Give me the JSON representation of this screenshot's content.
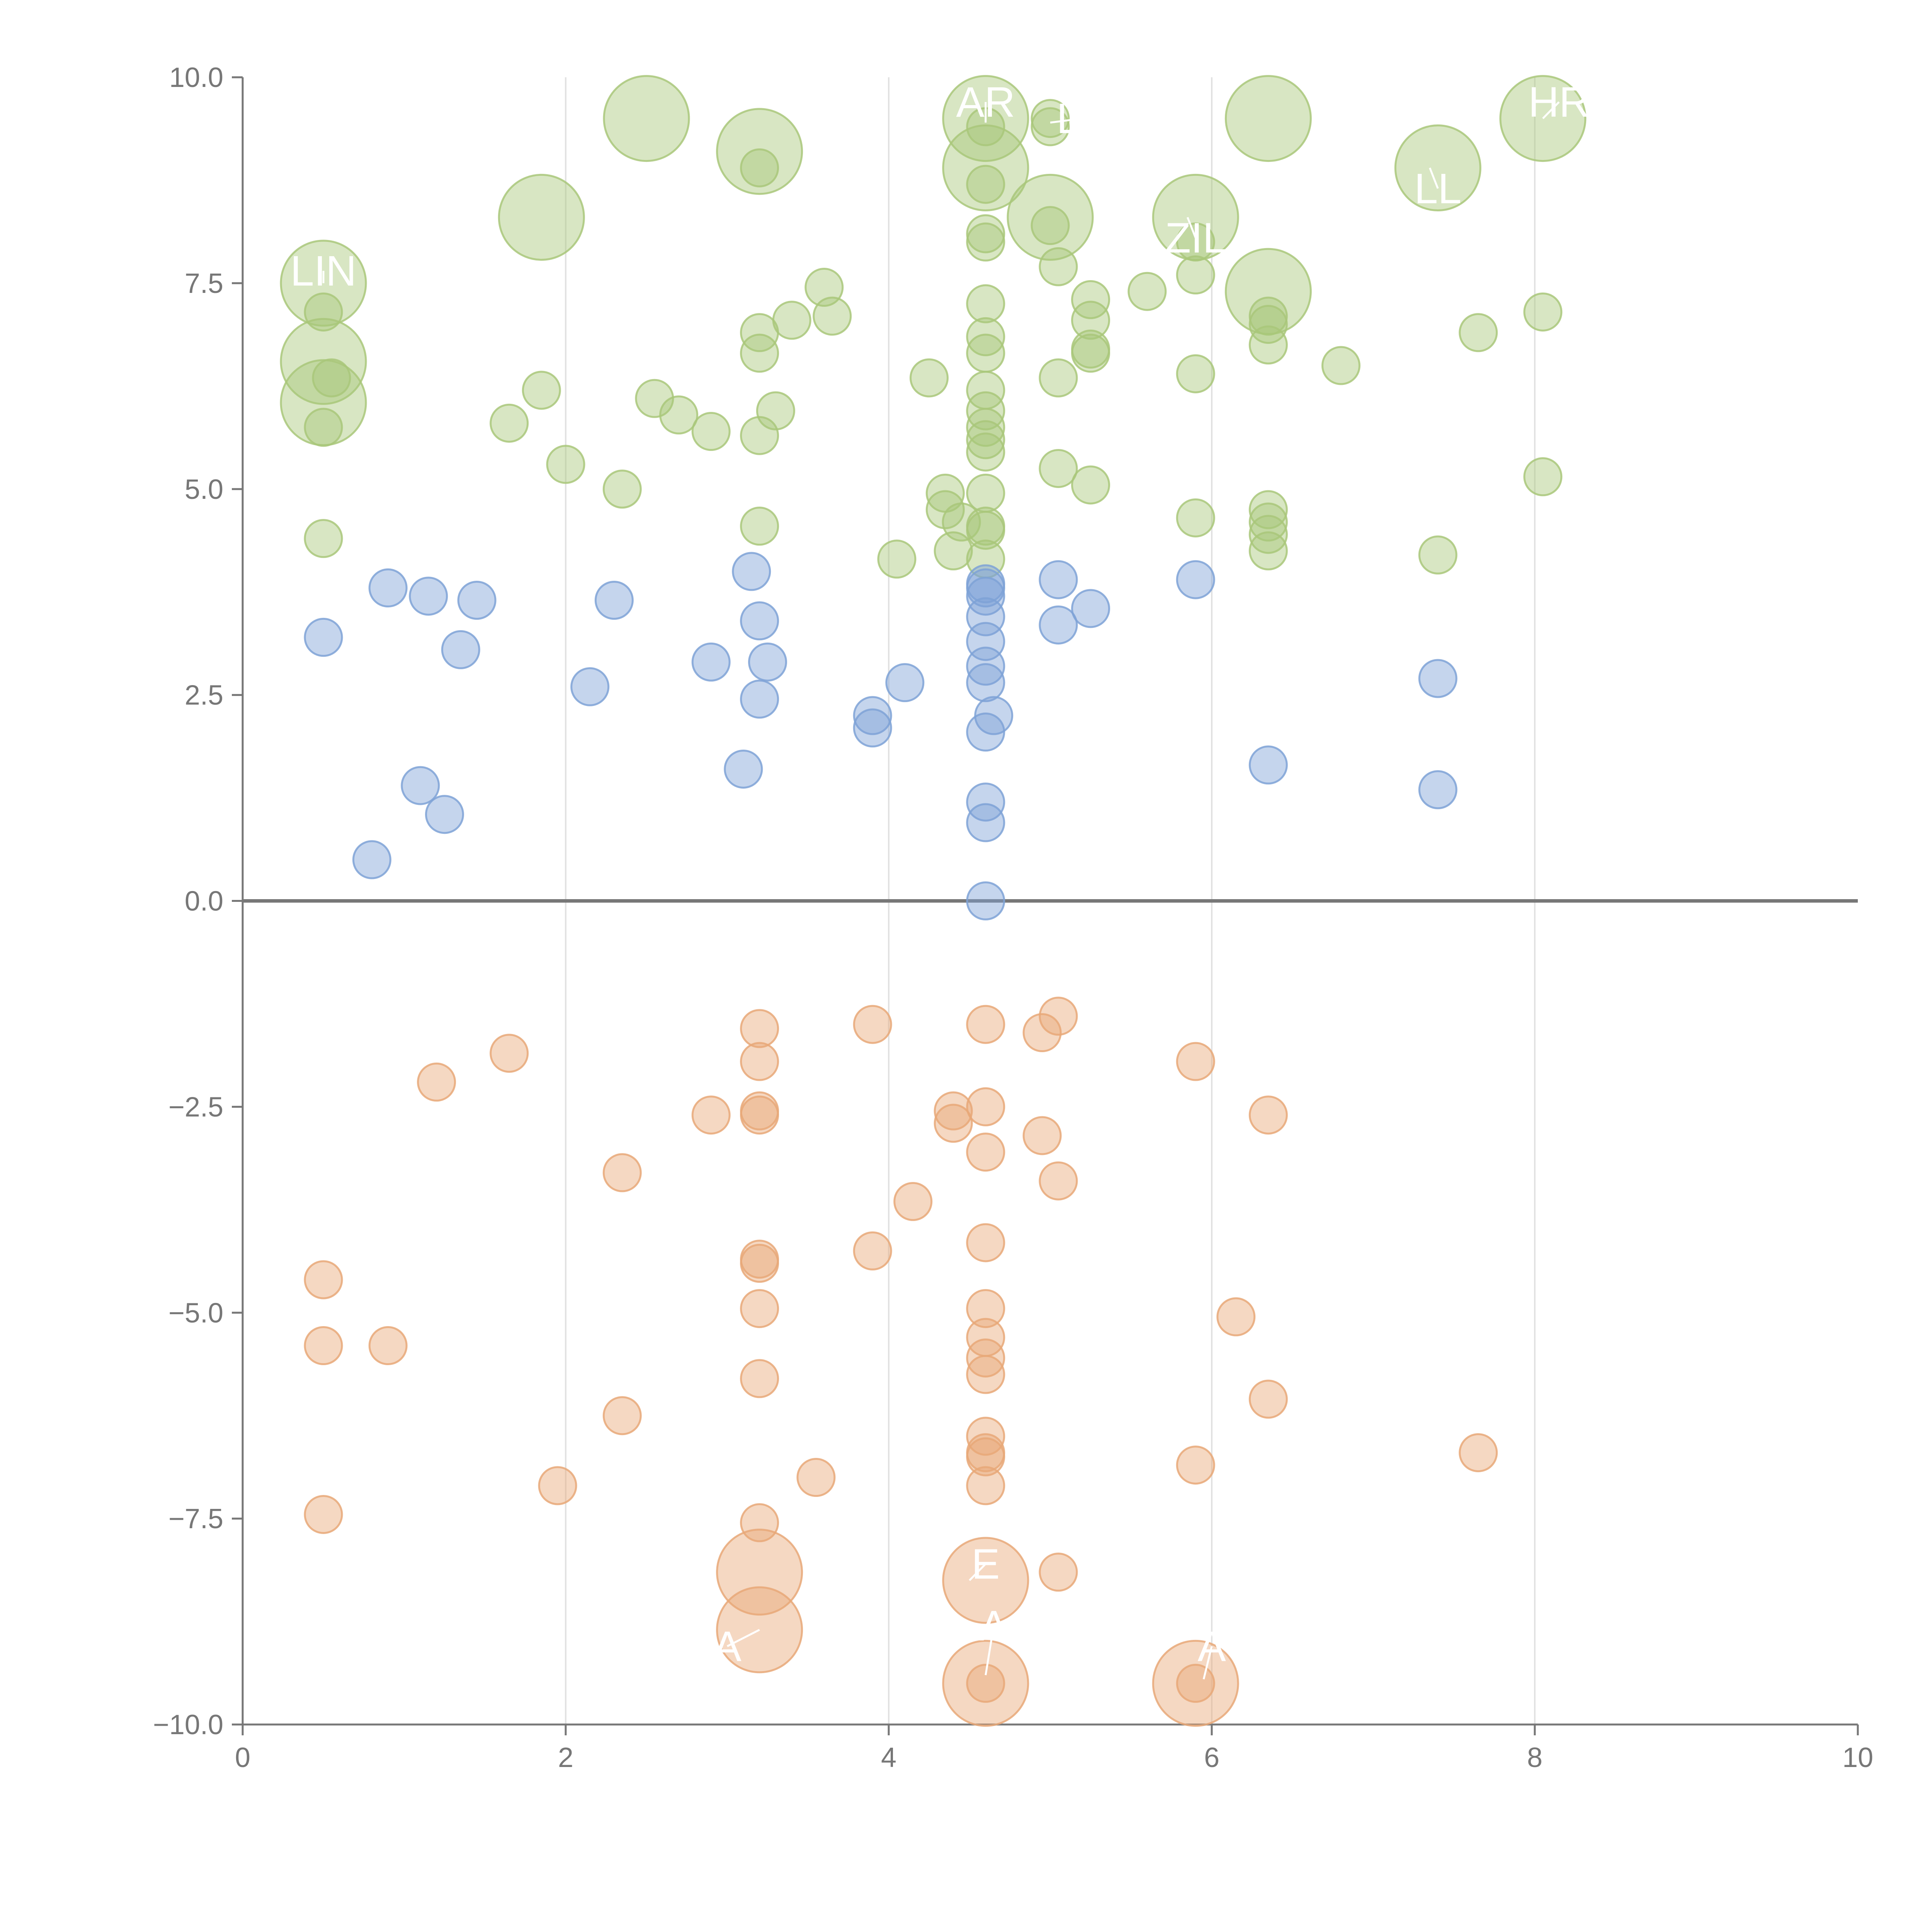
{
  "chart_data": {
    "type": "scatter",
    "title": "",
    "xlabel": "",
    "ylabel": "",
    "xlim": [
      0,
      10
    ],
    "ylim": [
      -10,
      10
    ],
    "x_ticks": [
      0,
      2,
      4,
      6,
      8,
      10
    ],
    "x_tick_labels": [
      "0",
      "2",
      "4",
      "6",
      "8",
      "10"
    ],
    "y_ticks": [
      -10,
      -7.5,
      -5,
      -2.5,
      0,
      2.5,
      5,
      7.5,
      10
    ],
    "y_tick_labels": [
      "−10.0",
      "−7.5",
      "−5.0",
      "−2.5",
      "0.0",
      "2.5",
      "5.0",
      "7.5",
      "10.0"
    ],
    "vertical_gridlines": [
      2,
      4,
      6,
      8
    ],
    "zero_line": 0,
    "legend": "none",
    "series": [
      {
        "name": "green",
        "color": "#A9C77A",
        "points": [
          {
            "x": 2.5,
            "y": 9.5,
            "size": "large"
          },
          {
            "x": 3.2,
            "y": 9.1,
            "size": "large"
          },
          {
            "x": 3.2,
            "y": 8.9,
            "size": "small"
          },
          {
            "x": 4.6,
            "y": 9.5,
            "size": "large"
          },
          {
            "x": 4.6,
            "y": 9.4,
            "size": "small"
          },
          {
            "x": 4.6,
            "y": 8.9,
            "size": "large"
          },
          {
            "x": 4.6,
            "y": 8.7,
            "size": "small"
          },
          {
            "x": 5.0,
            "y": 9.5,
            "size": "small"
          },
          {
            "x": 5.0,
            "y": 9.4,
            "size": "small"
          },
          {
            "x": 6.35,
            "y": 9.5,
            "size": "large"
          },
          {
            "x": 8.05,
            "y": 9.5,
            "size": "large"
          },
          {
            "x": 7.4,
            "y": 8.9,
            "size": "large"
          },
          {
            "x": 1.85,
            "y": 8.3,
            "size": "large"
          },
          {
            "x": 5.0,
            "y": 8.3,
            "size": "large"
          },
          {
            "x": 5.0,
            "y": 8.2,
            "size": "small"
          },
          {
            "x": 5.9,
            "y": 8.3,
            "size": "large"
          },
          {
            "x": 5.9,
            "y": 8.0,
            "size": "small"
          },
          {
            "x": 4.6,
            "y": 8.1,
            "size": "small"
          },
          {
            "x": 4.6,
            "y": 8.0,
            "size": "small"
          },
          {
            "x": 0.5,
            "y": 7.5,
            "size": "large"
          },
          {
            "x": 0.5,
            "y": 7.15,
            "size": "small"
          },
          {
            "x": 0.5,
            "y": 6.55,
            "size": "large"
          },
          {
            "x": 0.55,
            "y": 6.35,
            "size": "small"
          },
          {
            "x": 0.5,
            "y": 6.05,
            "size": "large"
          },
          {
            "x": 0.5,
            "y": 5.75,
            "size": "small"
          },
          {
            "x": 0.5,
            "y": 4.4,
            "size": "small"
          },
          {
            "x": 1.65,
            "y": 5.8,
            "size": "small"
          },
          {
            "x": 1.85,
            "y": 6.2,
            "size": "small"
          },
          {
            "x": 2.0,
            "y": 5.3,
            "size": "small"
          },
          {
            "x": 2.35,
            "y": 5.0,
            "size": "small"
          },
          {
            "x": 2.55,
            "y": 6.1,
            "size": "small"
          },
          {
            "x": 2.7,
            "y": 5.9,
            "size": "small"
          },
          {
            "x": 2.9,
            "y": 5.7,
            "size": "small"
          },
          {
            "x": 3.2,
            "y": 6.9,
            "size": "small"
          },
          {
            "x": 3.2,
            "y": 6.65,
            "size": "small"
          },
          {
            "x": 3.3,
            "y": 5.95,
            "size": "small"
          },
          {
            "x": 3.2,
            "y": 5.65,
            "size": "small"
          },
          {
            "x": 3.2,
            "y": 4.55,
            "size": "small"
          },
          {
            "x": 3.4,
            "y": 7.05,
            "size": "small"
          },
          {
            "x": 3.6,
            "y": 7.45,
            "size": "small"
          },
          {
            "x": 3.65,
            "y": 7.1,
            "size": "small"
          },
          {
            "x": 4.05,
            "y": 4.15,
            "size": "small"
          },
          {
            "x": 4.25,
            "y": 6.35,
            "size": "small"
          },
          {
            "x": 4.35,
            "y": 4.95,
            "size": "small"
          },
          {
            "x": 4.35,
            "y": 4.75,
            "size": "small"
          },
          {
            "x": 4.45,
            "y": 4.6,
            "size": "small"
          },
          {
            "x": 4.4,
            "y": 4.25,
            "size": "small"
          },
          {
            "x": 4.6,
            "y": 7.25,
            "size": "small"
          },
          {
            "x": 4.6,
            "y": 6.85,
            "size": "small"
          },
          {
            "x": 4.6,
            "y": 6.65,
            "size": "small"
          },
          {
            "x": 4.6,
            "y": 6.2,
            "size": "small"
          },
          {
            "x": 4.6,
            "y": 5.95,
            "size": "small"
          },
          {
            "x": 4.6,
            "y": 5.75,
            "size": "small"
          },
          {
            "x": 4.6,
            "y": 5.6,
            "size": "small"
          },
          {
            "x": 4.6,
            "y": 5.45,
            "size": "small"
          },
          {
            "x": 4.6,
            "y": 4.95,
            "size": "small"
          },
          {
            "x": 4.6,
            "y": 4.55,
            "size": "small"
          },
          {
            "x": 4.6,
            "y": 4.5,
            "size": "small"
          },
          {
            "x": 4.6,
            "y": 4.15,
            "size": "small"
          },
          {
            "x": 5.05,
            "y": 7.7,
            "size": "small"
          },
          {
            "x": 5.05,
            "y": 6.35,
            "size": "small"
          },
          {
            "x": 5.05,
            "y": 5.25,
            "size": "small"
          },
          {
            "x": 5.25,
            "y": 7.3,
            "size": "small"
          },
          {
            "x": 5.25,
            "y": 7.05,
            "size": "small"
          },
          {
            "x": 5.25,
            "y": 6.7,
            "size": "small"
          },
          {
            "x": 5.25,
            "y": 6.65,
            "size": "small"
          },
          {
            "x": 5.25,
            "y": 5.05,
            "size": "small"
          },
          {
            "x": 5.6,
            "y": 7.4,
            "size": "small"
          },
          {
            "x": 5.9,
            "y": 7.6,
            "size": "small"
          },
          {
            "x": 5.9,
            "y": 6.4,
            "size": "small"
          },
          {
            "x": 5.9,
            "y": 4.65,
            "size": "small"
          },
          {
            "x": 6.35,
            "y": 7.4,
            "size": "large"
          },
          {
            "x": 6.35,
            "y": 7.1,
            "size": "small"
          },
          {
            "x": 6.35,
            "y": 7.0,
            "size": "small"
          },
          {
            "x": 6.35,
            "y": 6.75,
            "size": "small"
          },
          {
            "x": 6.35,
            "y": 4.75,
            "size": "small"
          },
          {
            "x": 6.35,
            "y": 4.6,
            "size": "small"
          },
          {
            "x": 6.35,
            "y": 4.45,
            "size": "small"
          },
          {
            "x": 6.35,
            "y": 4.25,
            "size": "small"
          },
          {
            "x": 6.8,
            "y": 6.5,
            "size": "small"
          },
          {
            "x": 7.4,
            "y": 4.2,
            "size": "small"
          },
          {
            "x": 7.65,
            "y": 6.9,
            "size": "small"
          },
          {
            "x": 8.05,
            "y": 7.15,
            "size": "small"
          },
          {
            "x": 8.05,
            "y": 5.15,
            "size": "small"
          }
        ]
      },
      {
        "name": "blue",
        "color": "#7EA2D6",
        "points": [
          {
            "x": 0.5,
            "y": 3.2,
            "size": "small"
          },
          {
            "x": 0.8,
            "y": 0.5,
            "size": "small"
          },
          {
            "x": 0.9,
            "y": 3.8,
            "size": "small"
          },
          {
            "x": 1.1,
            "y": 1.4,
            "size": "small"
          },
          {
            "x": 1.15,
            "y": 3.7,
            "size": "small"
          },
          {
            "x": 1.25,
            "y": 1.05,
            "size": "small"
          },
          {
            "x": 1.35,
            "y": 3.05,
            "size": "small"
          },
          {
            "x": 1.45,
            "y": 3.65,
            "size": "small"
          },
          {
            "x": 2.15,
            "y": 2.6,
            "size": "small"
          },
          {
            "x": 2.3,
            "y": 3.65,
            "size": "small"
          },
          {
            "x": 2.9,
            "y": 2.9,
            "size": "small"
          },
          {
            "x": 3.1,
            "y": 1.6,
            "size": "small"
          },
          {
            "x": 3.15,
            "y": 4.0,
            "size": "small"
          },
          {
            "x": 3.2,
            "y": 3.4,
            "size": "small"
          },
          {
            "x": 3.25,
            "y": 2.9,
            "size": "small"
          },
          {
            "x": 3.2,
            "y": 2.45,
            "size": "small"
          },
          {
            "x": 3.9,
            "y": 2.25,
            "size": "small"
          },
          {
            "x": 3.9,
            "y": 2.1,
            "size": "small"
          },
          {
            "x": 4.1,
            "y": 2.65,
            "size": "small"
          },
          {
            "x": 4.6,
            "y": 3.85,
            "size": "small"
          },
          {
            "x": 4.6,
            "y": 3.8,
            "size": "small"
          },
          {
            "x": 4.6,
            "y": 3.7,
            "size": "small"
          },
          {
            "x": 4.6,
            "y": 3.45,
            "size": "small"
          },
          {
            "x": 4.6,
            "y": 3.15,
            "size": "small"
          },
          {
            "x": 4.6,
            "y": 2.85,
            "size": "small"
          },
          {
            "x": 4.6,
            "y": 2.65,
            "size": "small"
          },
          {
            "x": 4.65,
            "y": 2.25,
            "size": "small"
          },
          {
            "x": 4.6,
            "y": 2.05,
            "size": "small"
          },
          {
            "x": 4.6,
            "y": 1.2,
            "size": "small"
          },
          {
            "x": 4.6,
            "y": 0.95,
            "size": "small"
          },
          {
            "x": 4.6,
            "y": 0.0,
            "size": "small"
          },
          {
            "x": 5.05,
            "y": 3.9,
            "size": "small"
          },
          {
            "x": 5.05,
            "y": 3.35,
            "size": "small"
          },
          {
            "x": 5.25,
            "y": 3.55,
            "size": "small"
          },
          {
            "x": 5.9,
            "y": 3.9,
            "size": "small"
          },
          {
            "x": 6.35,
            "y": 1.65,
            "size": "small"
          },
          {
            "x": 7.4,
            "y": 2.7,
            "size": "small"
          },
          {
            "x": 7.4,
            "y": 1.35,
            "size": "small"
          }
        ]
      },
      {
        "name": "orange",
        "color": "#E8A878",
        "points": [
          {
            "x": 0.5,
            "y": -4.6,
            "size": "small"
          },
          {
            "x": 0.5,
            "y": -5.4,
            "size": "small"
          },
          {
            "x": 0.5,
            "y": -7.45,
            "size": "small"
          },
          {
            "x": 0.9,
            "y": -5.4,
            "size": "small"
          },
          {
            "x": 1.2,
            "y": -2.2,
            "size": "small"
          },
          {
            "x": 1.65,
            "y": -1.85,
            "size": "small"
          },
          {
            "x": 1.95,
            "y": -7.1,
            "size": "small"
          },
          {
            "x": 2.35,
            "y": -3.3,
            "size": "small"
          },
          {
            "x": 2.35,
            "y": -6.25,
            "size": "small"
          },
          {
            "x": 2.9,
            "y": -2.6,
            "size": "small"
          },
          {
            "x": 3.2,
            "y": -1.55,
            "size": "small"
          },
          {
            "x": 3.2,
            "y": -1.95,
            "size": "small"
          },
          {
            "x": 3.2,
            "y": -2.55,
            "size": "small"
          },
          {
            "x": 3.2,
            "y": -2.6,
            "size": "small"
          },
          {
            "x": 3.2,
            "y": -4.35,
            "size": "small"
          },
          {
            "x": 3.2,
            "y": -4.4,
            "size": "small"
          },
          {
            "x": 3.2,
            "y": -4.95,
            "size": "small"
          },
          {
            "x": 3.2,
            "y": -5.8,
            "size": "small"
          },
          {
            "x": 3.2,
            "y": -7.55,
            "size": "small"
          },
          {
            "x": 3.2,
            "y": -8.15,
            "size": "large"
          },
          {
            "x": 3.2,
            "y": -8.85,
            "size": "large"
          },
          {
            "x": 3.55,
            "y": -7.0,
            "size": "small"
          },
          {
            "x": 3.9,
            "y": -1.5,
            "size": "small"
          },
          {
            "x": 3.9,
            "y": -4.25,
            "size": "small"
          },
          {
            "x": 4.15,
            "y": -3.65,
            "size": "small"
          },
          {
            "x": 4.4,
            "y": -2.55,
            "size": "small"
          },
          {
            "x": 4.4,
            "y": -2.7,
            "size": "small"
          },
          {
            "x": 4.6,
            "y": -1.5,
            "size": "small"
          },
          {
            "x": 4.6,
            "y": -2.5,
            "size": "small"
          },
          {
            "x": 4.6,
            "y": -3.05,
            "size": "small"
          },
          {
            "x": 4.6,
            "y": -4.15,
            "size": "small"
          },
          {
            "x": 4.6,
            "y": -4.95,
            "size": "small"
          },
          {
            "x": 4.6,
            "y": -5.3,
            "size": "small"
          },
          {
            "x": 4.6,
            "y": -5.55,
            "size": "small"
          },
          {
            "x": 4.6,
            "y": -5.75,
            "size": "small"
          },
          {
            "x": 4.6,
            "y": -6.5,
            "size": "small"
          },
          {
            "x": 4.6,
            "y": -6.7,
            "size": "small"
          },
          {
            "x": 4.6,
            "y": -6.75,
            "size": "small"
          },
          {
            "x": 4.6,
            "y": -7.1,
            "size": "small"
          },
          {
            "x": 4.6,
            "y": -8.25,
            "size": "large"
          },
          {
            "x": 4.6,
            "y": -9.5,
            "size": "large"
          },
          {
            "x": 4.6,
            "y": -9.5,
            "size": "small"
          },
          {
            "x": 4.95,
            "y": -1.6,
            "size": "small"
          },
          {
            "x": 5.05,
            "y": -1.4,
            "size": "small"
          },
          {
            "x": 4.95,
            "y": -2.85,
            "size": "small"
          },
          {
            "x": 5.05,
            "y": -3.4,
            "size": "small"
          },
          {
            "x": 5.05,
            "y": -8.15,
            "size": "small"
          },
          {
            "x": 5.9,
            "y": -1.95,
            "size": "small"
          },
          {
            "x": 5.9,
            "y": -6.85,
            "size": "small"
          },
          {
            "x": 5.9,
            "y": -9.5,
            "size": "large"
          },
          {
            "x": 5.9,
            "y": -9.5,
            "size": "small"
          },
          {
            "x": 6.15,
            "y": -5.05,
            "size": "small"
          },
          {
            "x": 6.35,
            "y": -2.6,
            "size": "small"
          },
          {
            "x": 6.35,
            "y": -6.05,
            "size": "small"
          },
          {
            "x": 7.65,
            "y": -6.7,
            "size": "small"
          }
        ]
      }
    ],
    "annotations": [
      {
        "text": "AR",
        "x": 4.6,
        "y": 9.7,
        "leader_to": [
          4.6,
          9.45
        ]
      },
      {
        "text": "LS",
        "x": 5.2,
        "y": 9.5,
        "leader_to": [
          5.0,
          9.45
        ]
      },
      {
        "text": "HR",
        "x": 8.15,
        "y": 9.7,
        "leader_to": [
          8.05,
          9.5
        ]
      },
      {
        "text": "LL",
        "x": 7.4,
        "y": 8.65,
        "leader_to": [
          7.35,
          8.9
        ]
      },
      {
        "text": "ZIL",
        "x": 5.9,
        "y": 8.05,
        "leader_to": [
          5.85,
          8.3
        ]
      },
      {
        "text": "LIN",
        "x": 0.5,
        "y": 7.65,
        "leader_to": [
          0.5,
          7.5
        ]
      },
      {
        "text": "E",
        "x": 4.6,
        "y": -8.05,
        "leader_to": [
          4.5,
          -8.25
        ]
      },
      {
        "text": "A",
        "x": 4.65,
        "y": -8.8,
        "leader_to": [
          4.6,
          -9.4
        ]
      },
      {
        "text": "A",
        "x": 3.0,
        "y": -9.05,
        "leader_to": [
          3.2,
          -8.85
        ]
      },
      {
        "text": "A",
        "x": 6.0,
        "y": -9.05,
        "leader_to": [
          5.95,
          -9.45
        ]
      }
    ]
  }
}
